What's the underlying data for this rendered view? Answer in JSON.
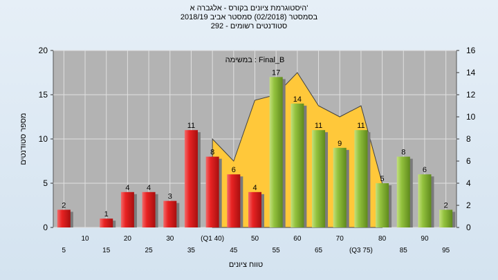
{
  "header": {
    "line1": "היסטוגרמת ציונים בקורס - אלגברה א'",
    "line2": "בסמסטר  (02/2018)  סמסטר אביב 2018/19",
    "line3": "סטודנטים רשומים - 292"
  },
  "chart_data": {
    "type": "bar",
    "legend_text": "במשימה : Final_B",
    "xlabel": "טווח ציונים",
    "ylabel": "מספר סטודנטים",
    "ylim": [
      0,
      20
    ],
    "y2lim": [
      0,
      16
    ],
    "yticks": [
      "0",
      "5",
      "10",
      "15",
      "20"
    ],
    "y2ticks": [
      "0",
      "2",
      "4",
      "6",
      "8",
      "10",
      "12",
      "14",
      "16"
    ],
    "x_tick_labels": [
      "5",
      "10",
      "15",
      "20",
      "25",
      "30",
      "35",
      "(Q1 40)",
      "45",
      "50",
      "55",
      "60",
      "65",
      "70",
      "(Q3 75)",
      "80",
      "85",
      "90",
      "95"
    ],
    "bars": [
      {
        "x": 5,
        "value": 2,
        "label": "2",
        "color": "#e02020"
      },
      {
        "x": 10,
        "value": 0,
        "label": "",
        "color": "#e02020"
      },
      {
        "x": 15,
        "value": 1,
        "label": "1",
        "color": "#e02020"
      },
      {
        "x": 20,
        "value": 4,
        "label": "4",
        "color": "#e02020"
      },
      {
        "x": 25,
        "value": 4,
        "label": "4",
        "color": "#e02020"
      },
      {
        "x": 30,
        "value": 3,
        "label": "3",
        "color": "#e02020"
      },
      {
        "x": 35,
        "value": 11,
        "label": "11",
        "color": "#e02020"
      },
      {
        "x": 40,
        "value": 8,
        "label": "8",
        "color": "#e02020"
      },
      {
        "x": 45,
        "value": 6,
        "label": "6",
        "color": "#e02020"
      },
      {
        "x": 50,
        "value": 4,
        "label": "4",
        "color": "#e02020"
      },
      {
        "x": 55,
        "value": 17,
        "label": "17",
        "color": "#8cbd3c"
      },
      {
        "x": 60,
        "value": 14,
        "label": "14",
        "color": "#8cbd3c"
      },
      {
        "x": 65,
        "value": 11,
        "label": "11",
        "color": "#8cbd3c"
      },
      {
        "x": 70,
        "value": 9,
        "label": "9",
        "color": "#8cbd3c"
      },
      {
        "x": 75,
        "value": 11,
        "label": "11",
        "color": "#8cbd3c"
      },
      {
        "x": 80,
        "value": 5,
        "label": "5",
        "color": "#8cbd3c"
      },
      {
        "x": 85,
        "value": 8,
        "label": "8",
        "color": "#8cbd3c"
      },
      {
        "x": 90,
        "value": 6,
        "label": "6",
        "color": "#8cbd3c"
      },
      {
        "x": 95,
        "value": 2,
        "label": "2",
        "color": "#8cbd3c"
      }
    ],
    "area": {
      "color": "#ffc83a",
      "points": [
        [
          40,
          8
        ],
        [
          45,
          6
        ],
        [
          50,
          11.5
        ],
        [
          55,
          12
        ],
        [
          60,
          14
        ],
        [
          65,
          11
        ],
        [
          70,
          10
        ],
        [
          75,
          11
        ],
        [
          80,
          4
        ]
      ]
    },
    "plot_background": "#b3b3b3",
    "grid": true
  }
}
